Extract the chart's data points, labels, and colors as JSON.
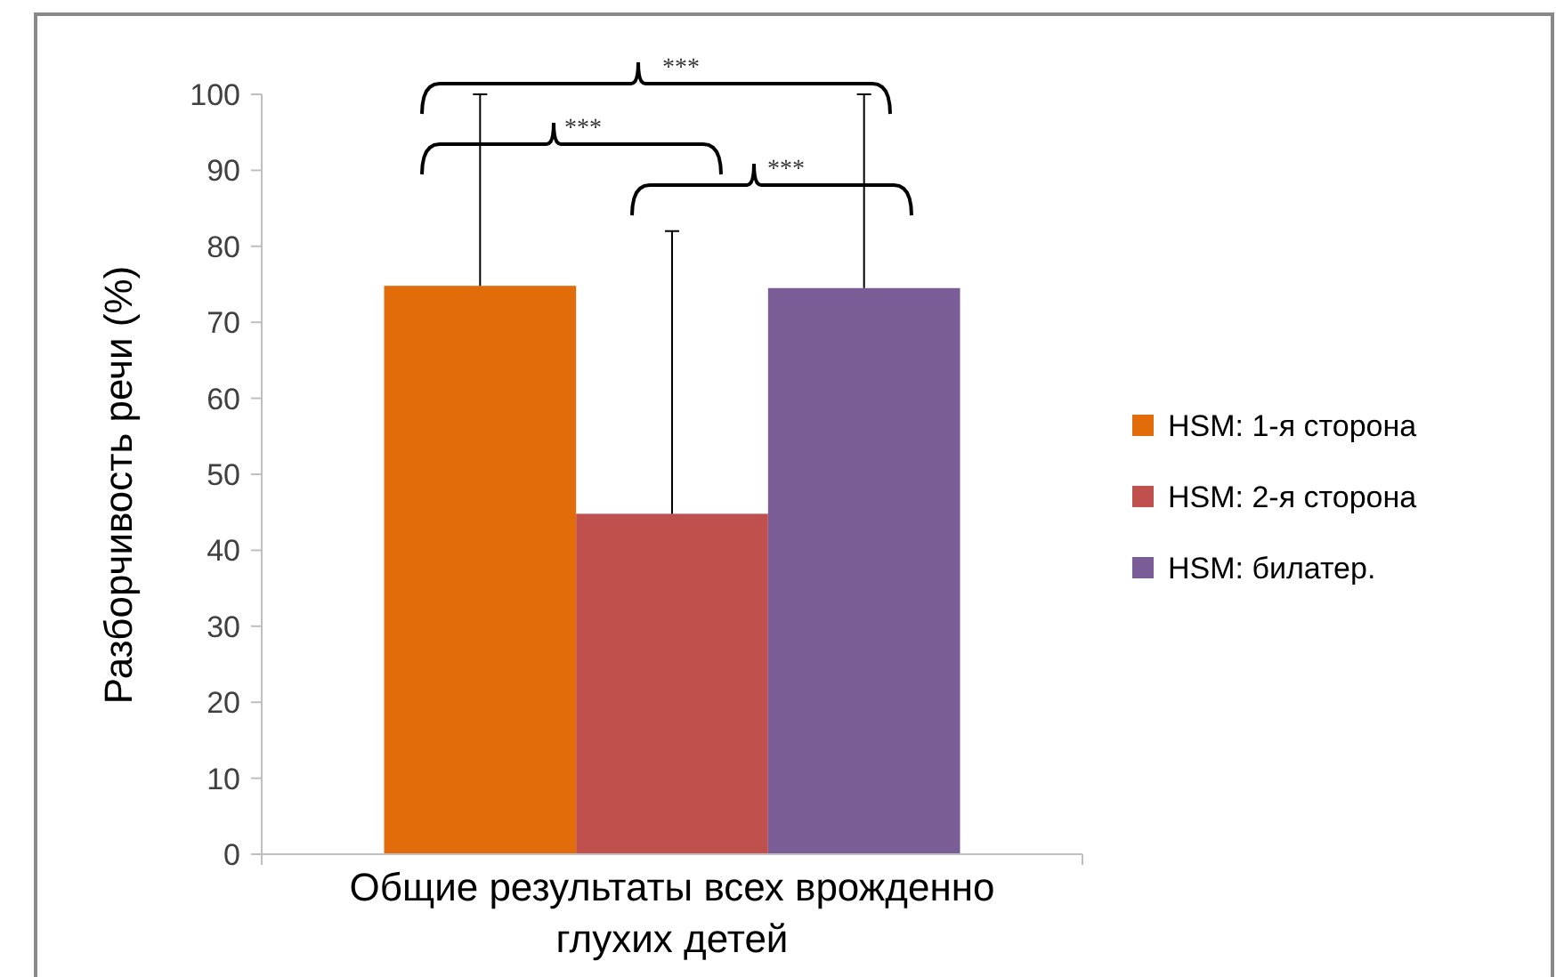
{
  "chart_data": {
    "type": "bar",
    "ylabel": "Разборчивость речи (%)",
    "categories": [
      "Общие результаты всех врожденно глухих детей"
    ],
    "series": [
      {
        "name": "HSM: 1-я сторона",
        "color": "#e36c0a",
        "values": [
          74.8
        ],
        "errors": [
          [
            74.8,
            100
          ]
        ]
      },
      {
        "name": "HSM: 2-я сторона",
        "color": "#c0504d",
        "values": [
          44.8
        ],
        "errors": [
          [
            44.8,
            82
          ]
        ]
      },
      {
        "name": "HSM: билатер.",
        "color": "#7a5c96",
        "values": [
          74.5
        ],
        "errors": [
          [
            74.5,
            100
          ]
        ]
      }
    ],
    "ylim": [
      0,
      100
    ],
    "yticks": [
      0,
      10,
      20,
      30,
      40,
      50,
      60,
      70,
      80,
      90,
      100
    ],
    "legend": "right",
    "annotations": [
      "***",
      "***",
      "***"
    ]
  }
}
